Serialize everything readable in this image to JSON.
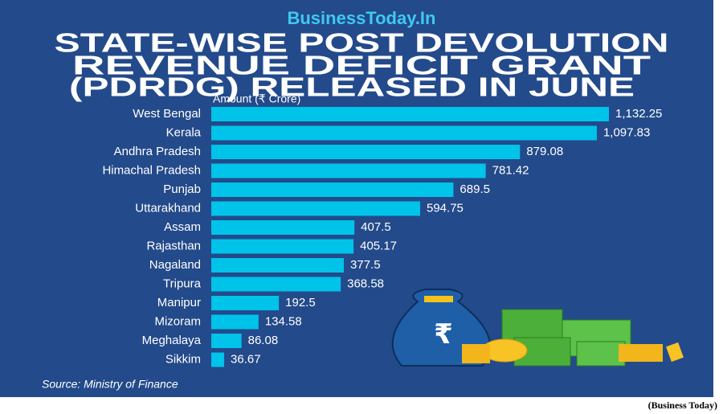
{
  "brand": "BusinessToday.In",
  "credit": "(Business Today)",
  "chart_data": {
    "type": "barh",
    "title_lines": [
      "STATE-WISE POST DEVOLUTION",
      "REVENUE DEFICIT GRANT",
      "(PDRDG) RELEASED IN JUNE"
    ],
    "axis_label": "Amount (₹ Crore)",
    "source": "Source: Ministry of Finance",
    "color": "#00c3ea",
    "categories": [
      "West Bengal",
      "Kerala",
      "Andhra Pradesh",
      "Himachal Pradesh",
      "Punjab",
      "Uttarakhand",
      "Assam",
      "Rajasthan",
      "Nagaland",
      "Tripura",
      "Manipur",
      "Mizoram",
      "Meghalaya",
      "Sikkim"
    ],
    "values": [
      1132.25,
      1097.83,
      879.08,
      781.42,
      689.5,
      594.75,
      407.5,
      405.17,
      377.5,
      368.58,
      192.5,
      134.58,
      86.08,
      36.67
    ],
    "value_labels": [
      "1,132.25",
      "1,097.83",
      "879.08",
      "781.42",
      "689.5",
      "594.75",
      "407.5",
      "405.17",
      "377.5",
      "368.58",
      "192.5",
      "134.58",
      "86.08",
      "36.67"
    ]
  }
}
